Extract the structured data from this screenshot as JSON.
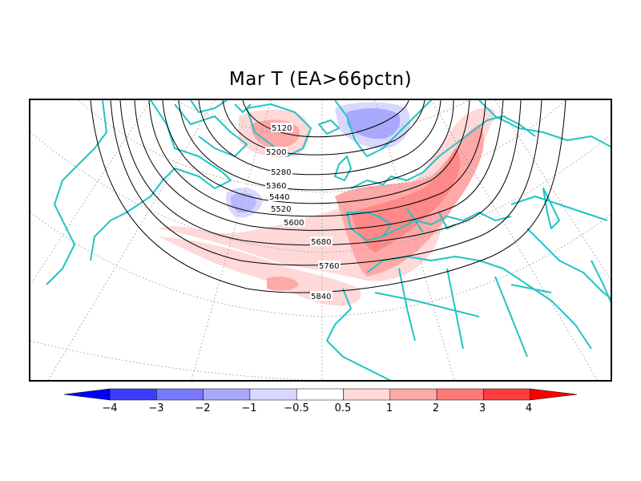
{
  "title": "Mar T (EA>66pctn)",
  "contour_labels": [
    "5120",
    "5200",
    "5280",
    "5360",
    "5440",
    "5520",
    "5600",
    "5680",
    "5760",
    "5840"
  ],
  "colorbar": {
    "tick_labels": [
      "−4",
      "−3",
      "−2",
      "−1",
      "−0.5",
      "0.5",
      "1",
      "2",
      "3",
      "4"
    ],
    "colors": [
      "#0000ff",
      "#3c3cff",
      "#7878ff",
      "#a8a8ff",
      "#d8d8ff",
      "#ffffff",
      "#ffd8d8",
      "#ffa8a8",
      "#ff7878",
      "#ff3c3c",
      "#ff0000"
    ]
  },
  "colors": {
    "coast": "#22c4c4",
    "contour": "#000000",
    "grid": "#a0a0a0"
  }
}
